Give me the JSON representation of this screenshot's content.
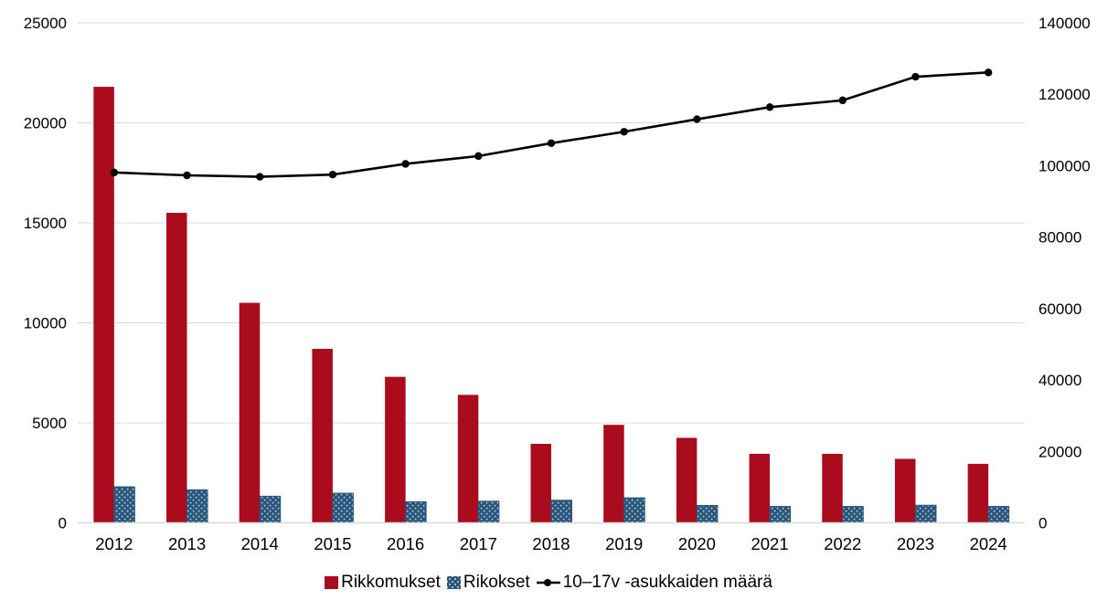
{
  "chart_data": {
    "type": "bar",
    "title": "",
    "categories": [
      "2012",
      "2013",
      "2014",
      "2015",
      "2016",
      "2017",
      "2018",
      "2019",
      "2020",
      "2021",
      "2022",
      "2023",
      "2024"
    ],
    "series": [
      {
        "name": "Rikkomukset",
        "type": "bar",
        "axis": "left",
        "color": "#AB0C1D",
        "values": [
          21800,
          15500,
          11000,
          8700,
          7300,
          6400,
          3950,
          4900,
          4250,
          3450,
          3450,
          3200,
          2950
        ]
      },
      {
        "name": "Rikokset",
        "type": "bar",
        "axis": "left",
        "color": "#28567D",
        "pattern": "dots",
        "dot_color": "#C7D2DD",
        "values": [
          1800,
          1650,
          1330,
          1480,
          1050,
          1080,
          1130,
          1250,
          870,
          820,
          820,
          880,
          820
        ]
      },
      {
        "name": "10–17v -asukkaiden määrä",
        "type": "line",
        "axis": "right",
        "color": "#000000",
        "marker": "circle",
        "values": [
          98100,
          97300,
          96900,
          97500,
          100500,
          102700,
          106300,
          109500,
          113000,
          116400,
          118300,
          124900,
          126100
        ]
      }
    ],
    "left_axis": {
      "min": 0,
      "max": 25000,
      "tick_step": 5000,
      "ticks": [
        0,
        5000,
        10000,
        15000,
        20000,
        25000
      ]
    },
    "right_axis": {
      "min": 0,
      "max": 140000,
      "tick_step": 20000,
      "ticks": [
        0,
        20000,
        40000,
        60000,
        80000,
        100000,
        120000,
        140000
      ]
    },
    "grid": "horizontal",
    "legend_position": "bottom",
    "colors": {
      "grid": "#D9D9D9",
      "axis_line": "#D9D9D9",
      "text": "#000000",
      "background": "#FFFFFF"
    }
  }
}
